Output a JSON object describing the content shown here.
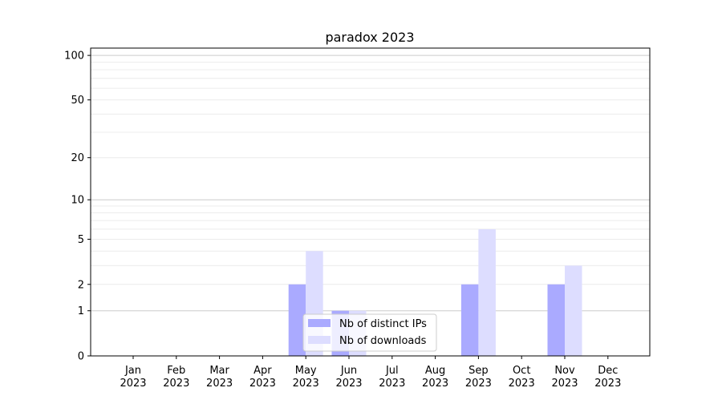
{
  "chart_data": {
    "type": "bar",
    "title": "paradox 2023",
    "xlabel": "",
    "ylabel": "",
    "y_scale": "log(1+y)",
    "ylim": [
      0,
      112
    ],
    "yticks": [
      0,
      1,
      2,
      5,
      10,
      20,
      50,
      100
    ],
    "ytick_labels": [
      "0",
      "1",
      "2",
      "5",
      "10",
      "20",
      "50",
      "100"
    ],
    "grid": true,
    "legend_position": "lower-center",
    "categories": [
      [
        "Jan",
        "2023"
      ],
      [
        "Feb",
        "2023"
      ],
      [
        "Mar",
        "2023"
      ],
      [
        "Apr",
        "2023"
      ],
      [
        "May",
        "2023"
      ],
      [
        "Jun",
        "2023"
      ],
      [
        "Jul",
        "2023"
      ],
      [
        "Aug",
        "2023"
      ],
      [
        "Sep",
        "2023"
      ],
      [
        "Oct",
        "2023"
      ],
      [
        "Nov",
        "2023"
      ],
      [
        "Dec",
        "2023"
      ]
    ],
    "series": [
      {
        "name": "Nb of distinct IPs",
        "color": "#aaaaff",
        "values": [
          0,
          0,
          0,
          0,
          2,
          1,
          0,
          0,
          2,
          0,
          2,
          0
        ]
      },
      {
        "name": "Nb of downloads",
        "color": "#ddddff",
        "values": [
          0,
          0,
          0,
          0,
          4,
          1,
          0,
          0,
          6,
          0,
          3,
          0
        ]
      }
    ]
  }
}
